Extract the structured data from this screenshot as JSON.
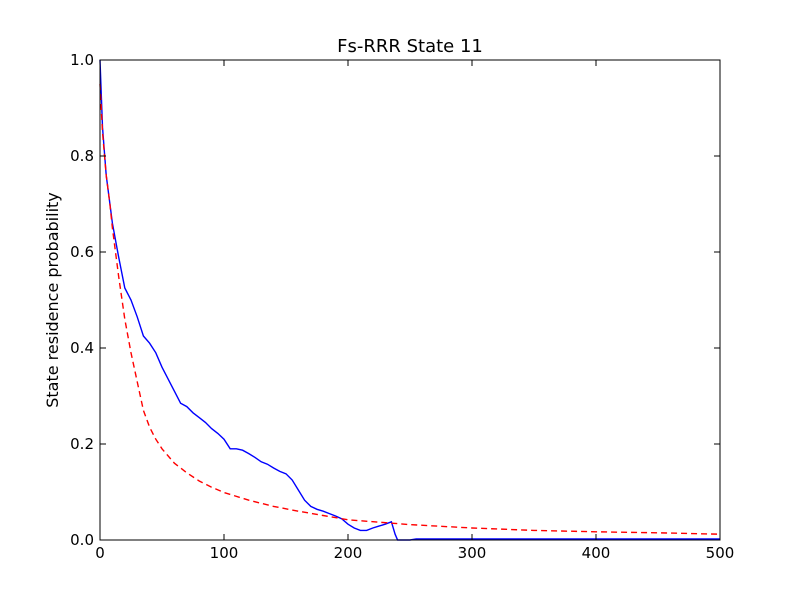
{
  "chart_data": {
    "type": "line",
    "title": "Fs-RRR State 11",
    "xlabel": "",
    "ylabel": "State residence probability",
    "xlim": [
      0,
      500
    ],
    "ylim": [
      0.0,
      1.0
    ],
    "x_ticks": [
      0,
      100,
      200,
      300,
      400,
      500
    ],
    "x_tick_labels": [
      "0",
      "100",
      "200",
      "300",
      "400",
      "500"
    ],
    "y_ticks": [
      0.0,
      0.2,
      0.4,
      0.6,
      0.8,
      1.0
    ],
    "y_tick_labels": [
      "0.0",
      "0.2",
      "0.4",
      "0.6",
      "0.8",
      "1.0"
    ],
    "grid": false,
    "legend": "none",
    "series": [
      {
        "style": "solid",
        "color": "#0000ff",
        "points": [
          [
            0,
            1.0
          ],
          [
            2,
            0.86
          ],
          [
            5,
            0.76
          ],
          [
            10,
            0.66
          ],
          [
            15,
            0.59
          ],
          [
            20,
            0.525
          ],
          [
            25,
            0.5
          ],
          [
            30,
            0.465
          ],
          [
            35,
            0.425
          ],
          [
            40,
            0.41
          ],
          [
            45,
            0.39
          ],
          [
            50,
            0.36
          ],
          [
            55,
            0.335
          ],
          [
            60,
            0.31
          ],
          [
            65,
            0.285
          ],
          [
            70,
            0.278
          ],
          [
            75,
            0.265
          ],
          [
            80,
            0.255
          ],
          [
            85,
            0.245
          ],
          [
            90,
            0.232
          ],
          [
            95,
            0.222
          ],
          [
            100,
            0.21
          ],
          [
            105,
            0.19
          ],
          [
            110,
            0.19
          ],
          [
            115,
            0.187
          ],
          [
            120,
            0.18
          ],
          [
            125,
            0.172
          ],
          [
            130,
            0.163
          ],
          [
            135,
            0.158
          ],
          [
            140,
            0.15
          ],
          [
            145,
            0.143
          ],
          [
            150,
            0.138
          ],
          [
            155,
            0.125
          ],
          [
            160,
            0.104
          ],
          [
            165,
            0.083
          ],
          [
            170,
            0.07
          ],
          [
            175,
            0.064
          ],
          [
            180,
            0.06
          ],
          [
            185,
            0.055
          ],
          [
            190,
            0.05
          ],
          [
            195,
            0.044
          ],
          [
            200,
            0.033
          ],
          [
            205,
            0.025
          ],
          [
            210,
            0.02
          ],
          [
            215,
            0.02
          ],
          [
            220,
            0.025
          ],
          [
            225,
            0.029
          ],
          [
            230,
            0.033
          ],
          [
            235,
            0.038
          ],
          [
            238,
            0.012
          ],
          [
            240,
            0.0
          ],
          [
            250,
            0.0
          ],
          [
            255,
            0.002
          ],
          [
            300,
            0.002
          ],
          [
            400,
            0.002
          ],
          [
            500,
            0.002
          ]
        ]
      },
      {
        "style": "dashed",
        "color": "#ff0000",
        "points": [
          [
            0,
            0.95
          ],
          [
            2,
            0.85
          ],
          [
            5,
            0.76
          ],
          [
            8,
            0.7
          ],
          [
            10,
            0.65
          ],
          [
            15,
            0.55
          ],
          [
            20,
            0.46
          ],
          [
            25,
            0.39
          ],
          [
            30,
            0.33
          ],
          [
            35,
            0.27
          ],
          [
            40,
            0.235
          ],
          [
            45,
            0.21
          ],
          [
            50,
            0.19
          ],
          [
            60,
            0.16
          ],
          [
            70,
            0.14
          ],
          [
            80,
            0.123
          ],
          [
            90,
            0.11
          ],
          [
            100,
            0.099
          ],
          [
            120,
            0.083
          ],
          [
            140,
            0.07
          ],
          [
            160,
            0.06
          ],
          [
            180,
            0.051
          ],
          [
            200,
            0.042
          ],
          [
            250,
            0.032
          ],
          [
            300,
            0.025
          ],
          [
            350,
            0.02
          ],
          [
            400,
            0.017
          ],
          [
            450,
            0.015
          ],
          [
            500,
            0.012
          ]
        ]
      }
    ]
  }
}
